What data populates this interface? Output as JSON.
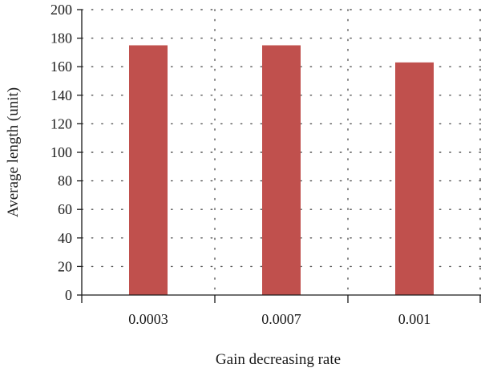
{
  "chart_data": {
    "type": "bar",
    "title": "",
    "xlabel": "Gain decreasing rate",
    "ylabel": "Average length (unit)",
    "categories": [
      "0.0003",
      "0.0007",
      "0.001"
    ],
    "series": [
      {
        "values": [
          175,
          175,
          163
        ]
      }
    ],
    "ylim": [
      0,
      200
    ],
    "yticks": [
      0,
      20,
      40,
      60,
      80,
      100,
      120,
      140,
      160,
      180,
      200
    ],
    "grid": "dotted horizontal and vertical",
    "legend": "none",
    "bar_color": "#c0504d",
    "axis_color": "#1a1a1a",
    "grid_color": "#555555"
  }
}
